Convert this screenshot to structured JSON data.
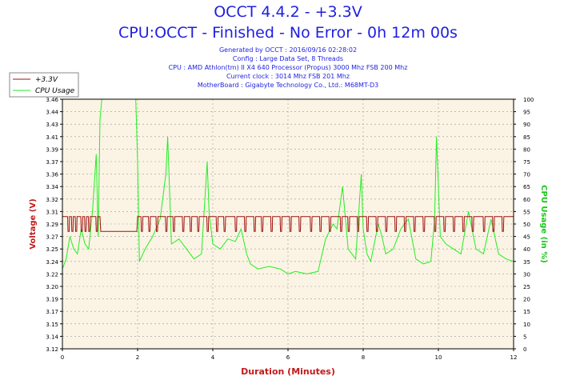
{
  "title": "OCCT 4.4.2 - +3.3V",
  "subtitle": "CPU:OCCT - Finished - No Error - 0h 12m 00s",
  "info_lines": [
    "Generated by OCCT : 2016/09/16 02:28:02",
    "Config : Large Data Set, 8 Threads",
    "CPU : AMD Athlon(tm) II X4 640 Processor (Propus) 3000 Mhz FSB 200 Mhz",
    "Current clock : 3014 Mhz FSB 201 Mhz",
    "MotherBoard : Gigabyte Technology Co., Ltd.: M68MT-D3"
  ],
  "colors": {
    "voltage": "#a01010",
    "cpu": "#22ee22",
    "title": "#1f1fe0",
    "plot_bg": "#fbf4e4",
    "axis_label": "#c21a1a",
    "cpu_axis_label": "#18c818"
  },
  "chart_data": {
    "type": "line",
    "xlabel": "Duration (Minutes)",
    "ylabel_left": "Voltage (V)",
    "ylabel_right": "CPU Usage (in %)",
    "xlim": [
      0,
      12
    ],
    "x_ticks": [
      "0",
      "2",
      "4",
      "6",
      "8",
      "10",
      "12"
    ],
    "ylim_left": [
      3.12,
      3.46
    ],
    "y_ticks_left": [
      "3.12",
      "3.14",
      "3.15",
      "3.17",
      "3.19",
      "3.20",
      "3.22",
      "3.24",
      "3.25",
      "3.27",
      "3.29",
      "3.31",
      "3.32",
      "3.34",
      "3.36",
      "3.37",
      "3.39",
      "3.41",
      "3.43",
      "3.44",
      "3.46"
    ],
    "ylim_right": [
      0,
      100
    ],
    "y_ticks_right": [
      "0",
      "5",
      "10",
      "15",
      "20",
      "25",
      "30",
      "35",
      "40",
      "45",
      "50",
      "55",
      "60",
      "65",
      "70",
      "75",
      "80",
      "85",
      "90",
      "95",
      "100"
    ],
    "grid": true,
    "legend_position": "top-left",
    "series": [
      {
        "name": "+3.3V",
        "axis": "left",
        "x": [
          0,
          1.0,
          1.02,
          1.98,
          2.0,
          12
        ],
        "y": [
          3.3,
          3.3,
          3.28,
          3.28,
          3.3,
          3.3
        ],
        "dips_x": [
          0.15,
          0.25,
          0.35,
          0.5,
          0.6,
          0.7,
          0.9,
          2.1,
          2.3,
          2.5,
          2.75,
          2.95,
          3.2,
          3.4,
          3.6,
          3.85,
          4.1,
          4.3,
          4.6,
          4.85,
          5.1,
          5.3,
          5.55,
          5.8,
          6.05,
          6.3,
          6.6,
          6.85,
          7.1,
          7.4,
          7.6,
          7.85,
          8.1,
          8.35,
          8.6,
          8.85,
          9.1,
          9.35,
          9.6,
          9.9,
          10.15,
          10.4,
          10.65,
          10.9,
          11.2,
          11.45,
          11.7
        ],
        "dip_value": 3.28
      },
      {
        "name": "CPU Usage",
        "axis": "right",
        "x": [
          0,
          0.1,
          0.2,
          0.3,
          0.4,
          0.5,
          0.6,
          0.7,
          0.8,
          0.9,
          0.95,
          1.0,
          1.05,
          1.1,
          1.2,
          1.5,
          1.8,
          1.95,
          2.0,
          2.05,
          2.2,
          2.4,
          2.6,
          2.75,
          2.8,
          2.9,
          3.1,
          3.3,
          3.5,
          3.7,
          3.85,
          3.9,
          4.0,
          4.2,
          4.4,
          4.6,
          4.75,
          4.9,
          5.0,
          5.2,
          5.5,
          5.8,
          6.0,
          6.2,
          6.5,
          6.8,
          7.0,
          7.2,
          7.3,
          7.45,
          7.6,
          7.8,
          7.95,
          8.0,
          8.1,
          8.2,
          8.4,
          8.5,
          8.6,
          8.8,
          9.0,
          9.2,
          9.4,
          9.6,
          9.8,
          9.9,
          9.95,
          10.05,
          10.2,
          10.4,
          10.6,
          10.8,
          11.0,
          11.2,
          11.4,
          11.6,
          11.8,
          12.0
        ],
        "y": [
          32,
          36,
          45,
          40,
          38,
          48,
          42,
          40,
          55,
          78,
          45,
          92,
          100,
          100,
          100,
          100,
          100,
          100,
          75,
          35,
          40,
          45,
          52,
          70,
          85,
          42,
          44,
          40,
          36,
          38,
          75,
          55,
          42,
          40,
          44,
          43,
          48,
          38,
          34,
          32,
          33,
          32,
          30,
          31,
          30,
          31,
          44,
          50,
          48,
          65,
          40,
          36,
          70,
          48,
          38,
          35,
          50,
          45,
          38,
          40,
          48,
          52,
          36,
          34,
          35,
          52,
          85,
          45,
          42,
          40,
          38,
          55,
          40,
          38,
          52,
          38,
          36,
          35
        ]
      }
    ]
  }
}
